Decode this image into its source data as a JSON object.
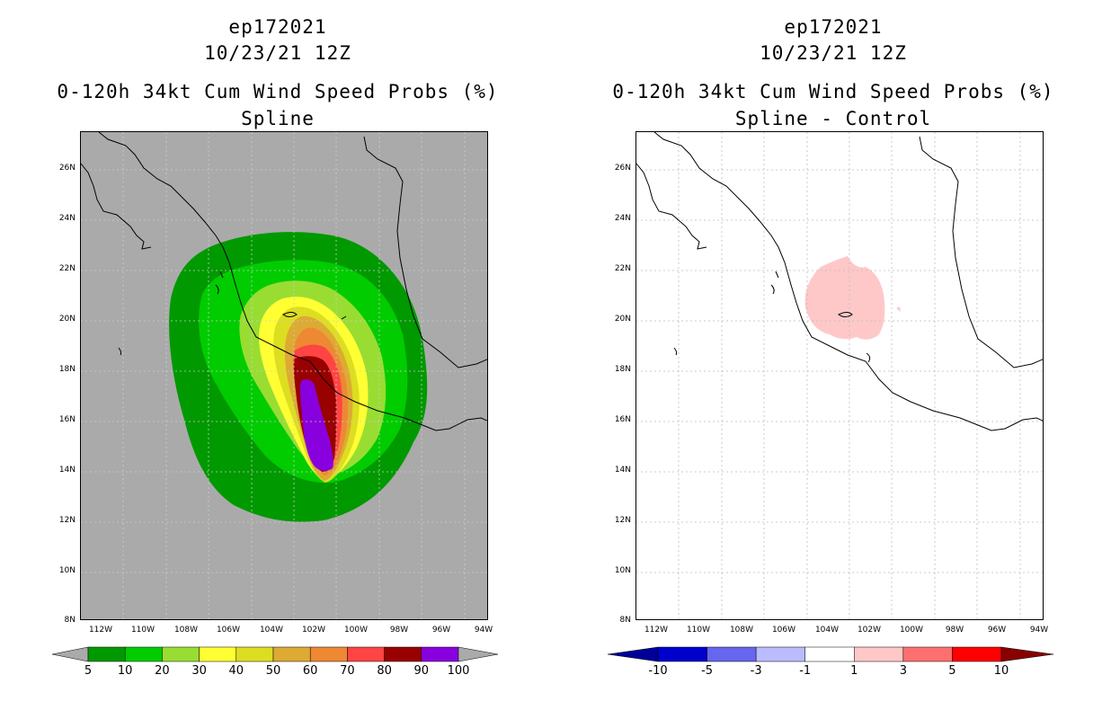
{
  "left_panel": {
    "storm_id": "ep172021",
    "datetime": "10/23/21 12Z",
    "product": "0-120h 34kt Cum Wind Speed Probs (%)",
    "subtitle": "Spline",
    "colorbar": {
      "colors": [
        "#009900",
        "#00cc00",
        "#99dd33",
        "#ffff33",
        "#dddd22",
        "#ddaa33",
        "#ee8833",
        "#ff4444",
        "#990000",
        "#8800dd"
      ],
      "labels": [
        "5",
        "10",
        "20",
        "30",
        "40",
        "50",
        "60",
        "70",
        "80",
        "90",
        "100"
      ],
      "end_arrow_color": "#aaaaaa"
    },
    "background_color": "#aaaaaa"
  },
  "right_panel": {
    "storm_id": "ep172021",
    "datetime": "10/23/21 12Z",
    "product": "0-120h 34kt Cum Wind Speed Probs (%)",
    "subtitle": "Spline - Control",
    "colorbar": {
      "colors": [
        "#0000cc",
        "#6666ee",
        "#bbbbff",
        "#ffffff",
        "#ffc8c8",
        "#ff6f6f",
        "#ff0000"
      ],
      "labels": [
        "-10",
        "-5",
        "-3",
        "-1",
        "1",
        "3",
        "5",
        "10"
      ],
      "left_arrow_color": "#000099",
      "right_arrow_color": "#880000"
    },
    "background_color": "#ffffff"
  },
  "axes": {
    "lat_labels": [
      "26N",
      "24N",
      "22N",
      "20N",
      "18N",
      "16N",
      "14N",
      "12N",
      "10N",
      "8N"
    ],
    "lon_labels": [
      "112W",
      "110W",
      "108W",
      "106W",
      "104W",
      "102W",
      "100W",
      "98W",
      "96W",
      "94W"
    ]
  }
}
